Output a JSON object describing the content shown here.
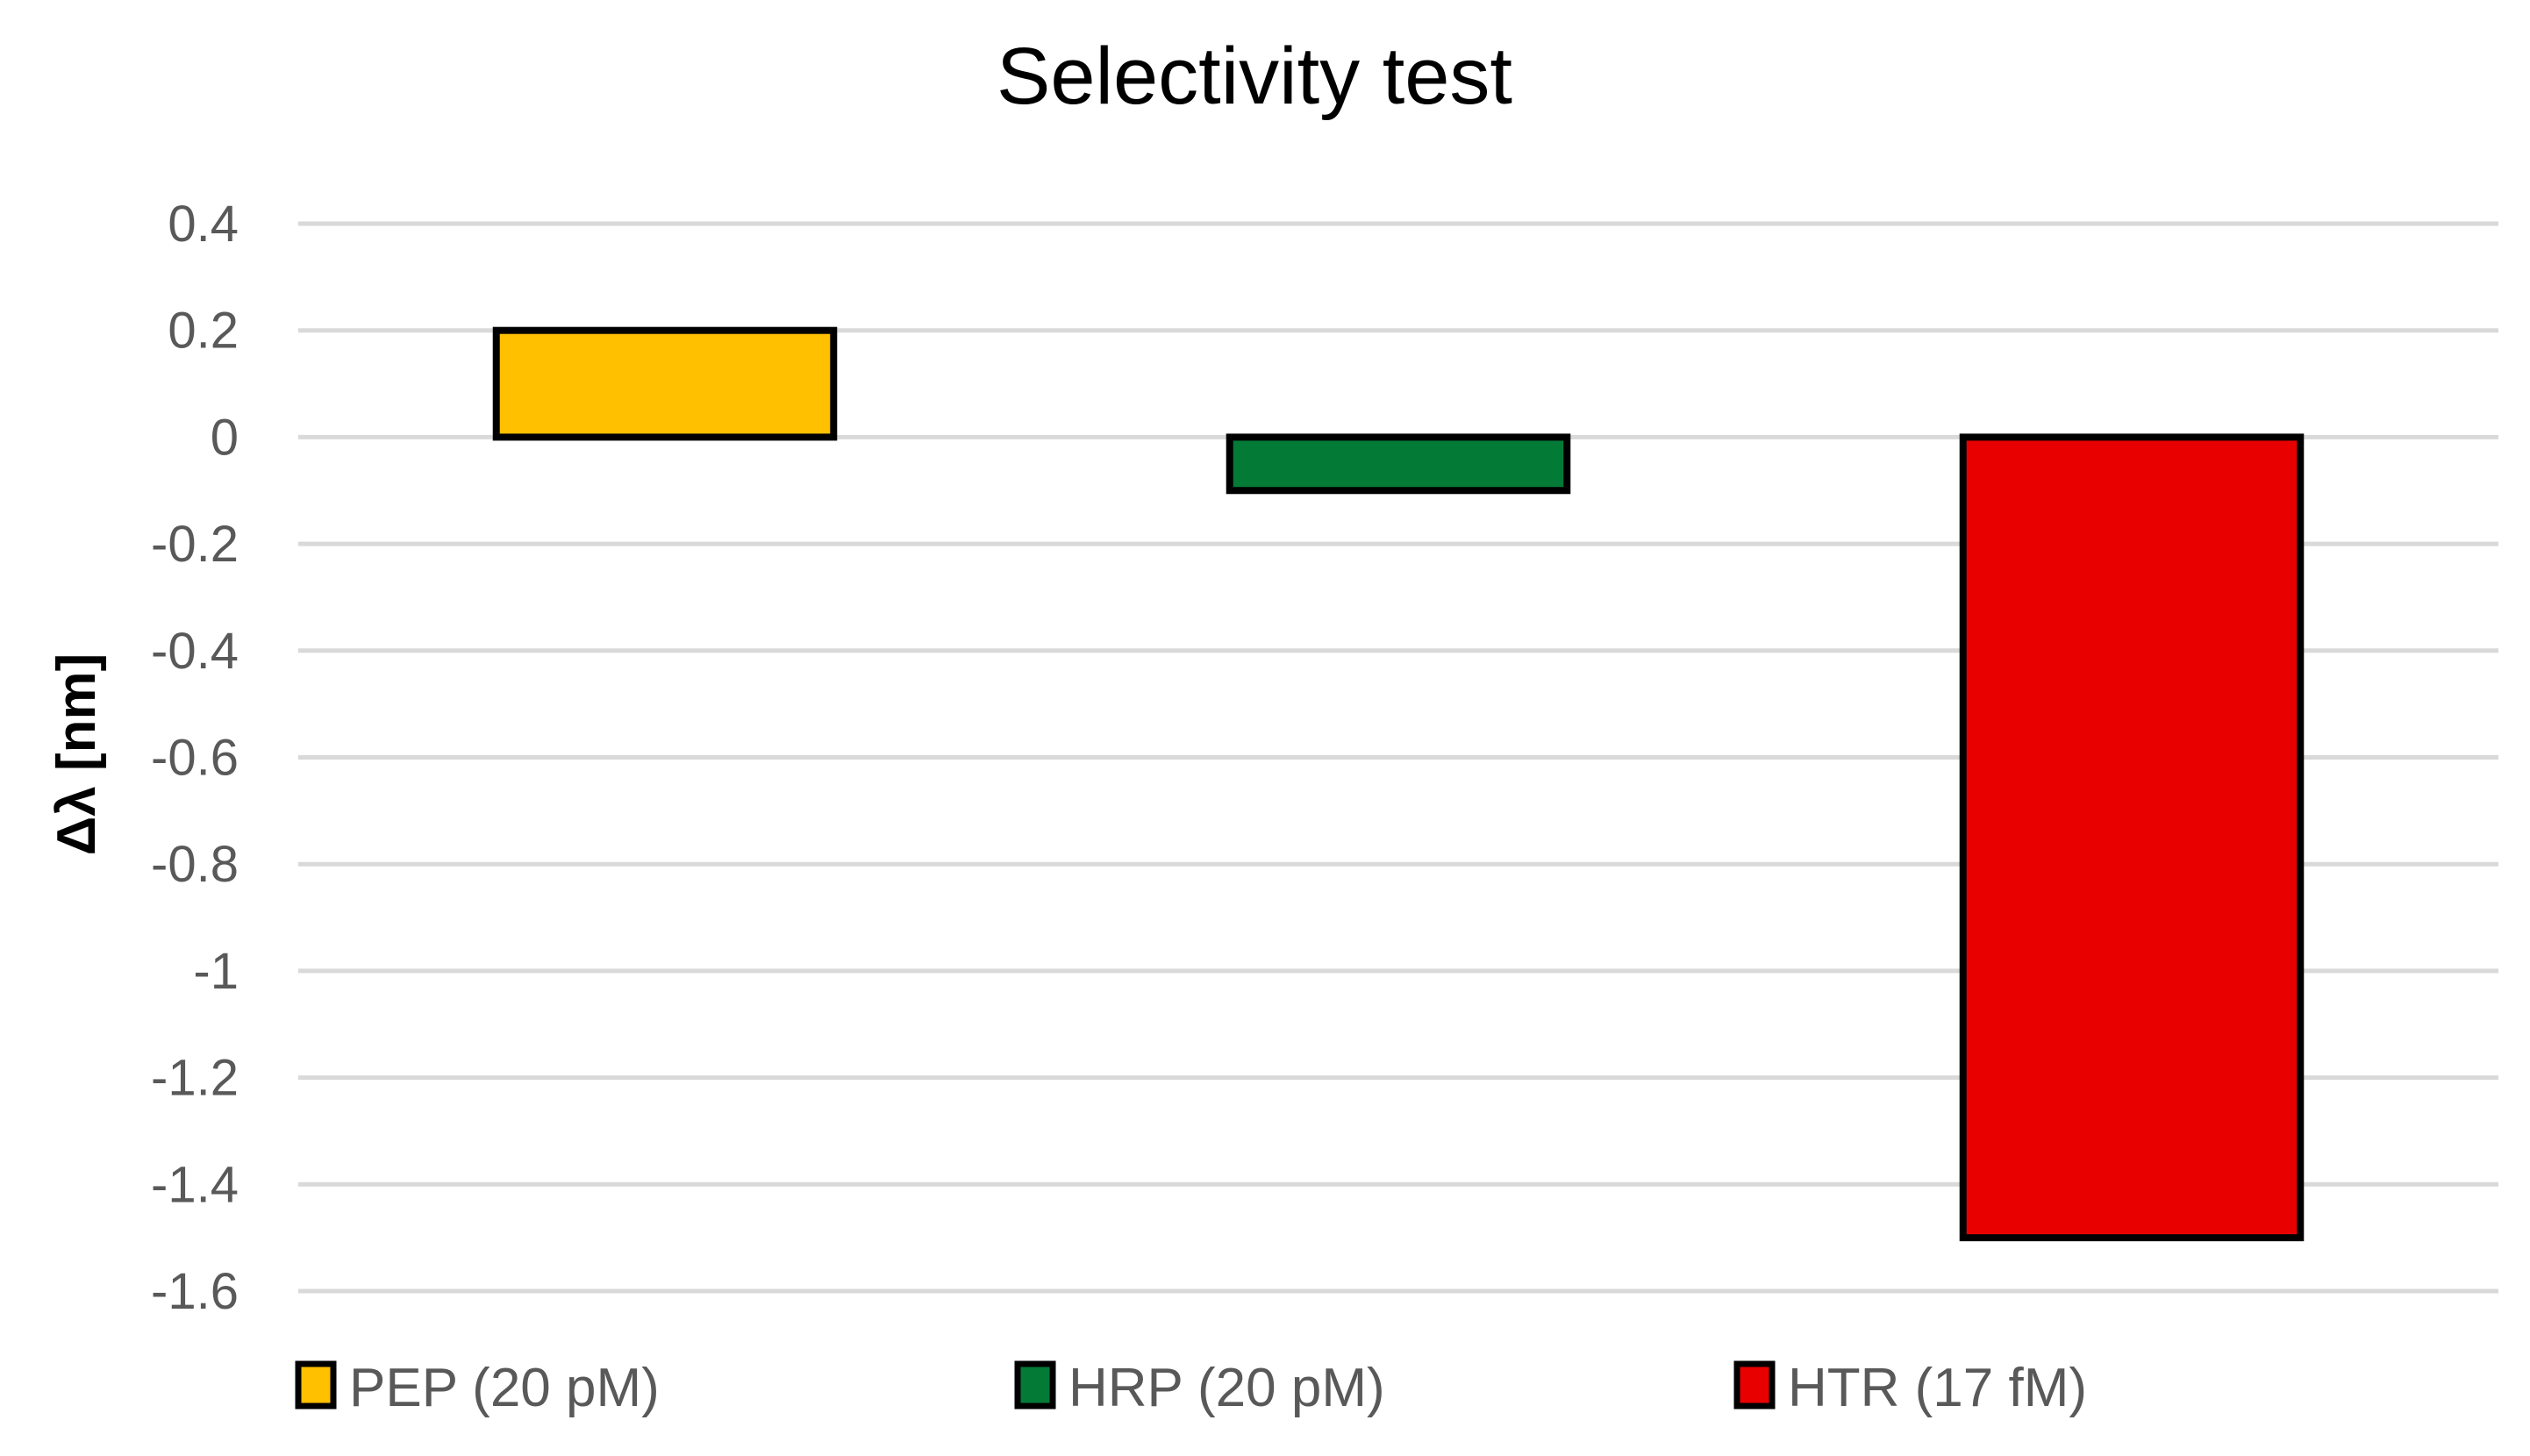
{
  "chart_data": {
    "type": "bar",
    "title": "Selectivity test",
    "ylabel": "Δλ [nm]",
    "xlabel": "",
    "ylim": [
      -1.6,
      0.4
    ],
    "yticks": [
      "0.4",
      "0.2",
      "0",
      "-0.2",
      "-0.4",
      "-0.6",
      "-0.8",
      "-1",
      "-1.2",
      "-1.4",
      "-1.6"
    ],
    "grid": true,
    "legend_position": "bottom",
    "categories": [
      "PEP (20 pM)",
      "HRP (20 pM)",
      "HTR (17 fM)"
    ],
    "values": [
      0.2,
      -0.1,
      -1.5
    ],
    "colors": [
      "#FFC000",
      "#047A37",
      "#E80000"
    ],
    "edge_color": "#000000",
    "grid_color": "#D9D9D9"
  }
}
